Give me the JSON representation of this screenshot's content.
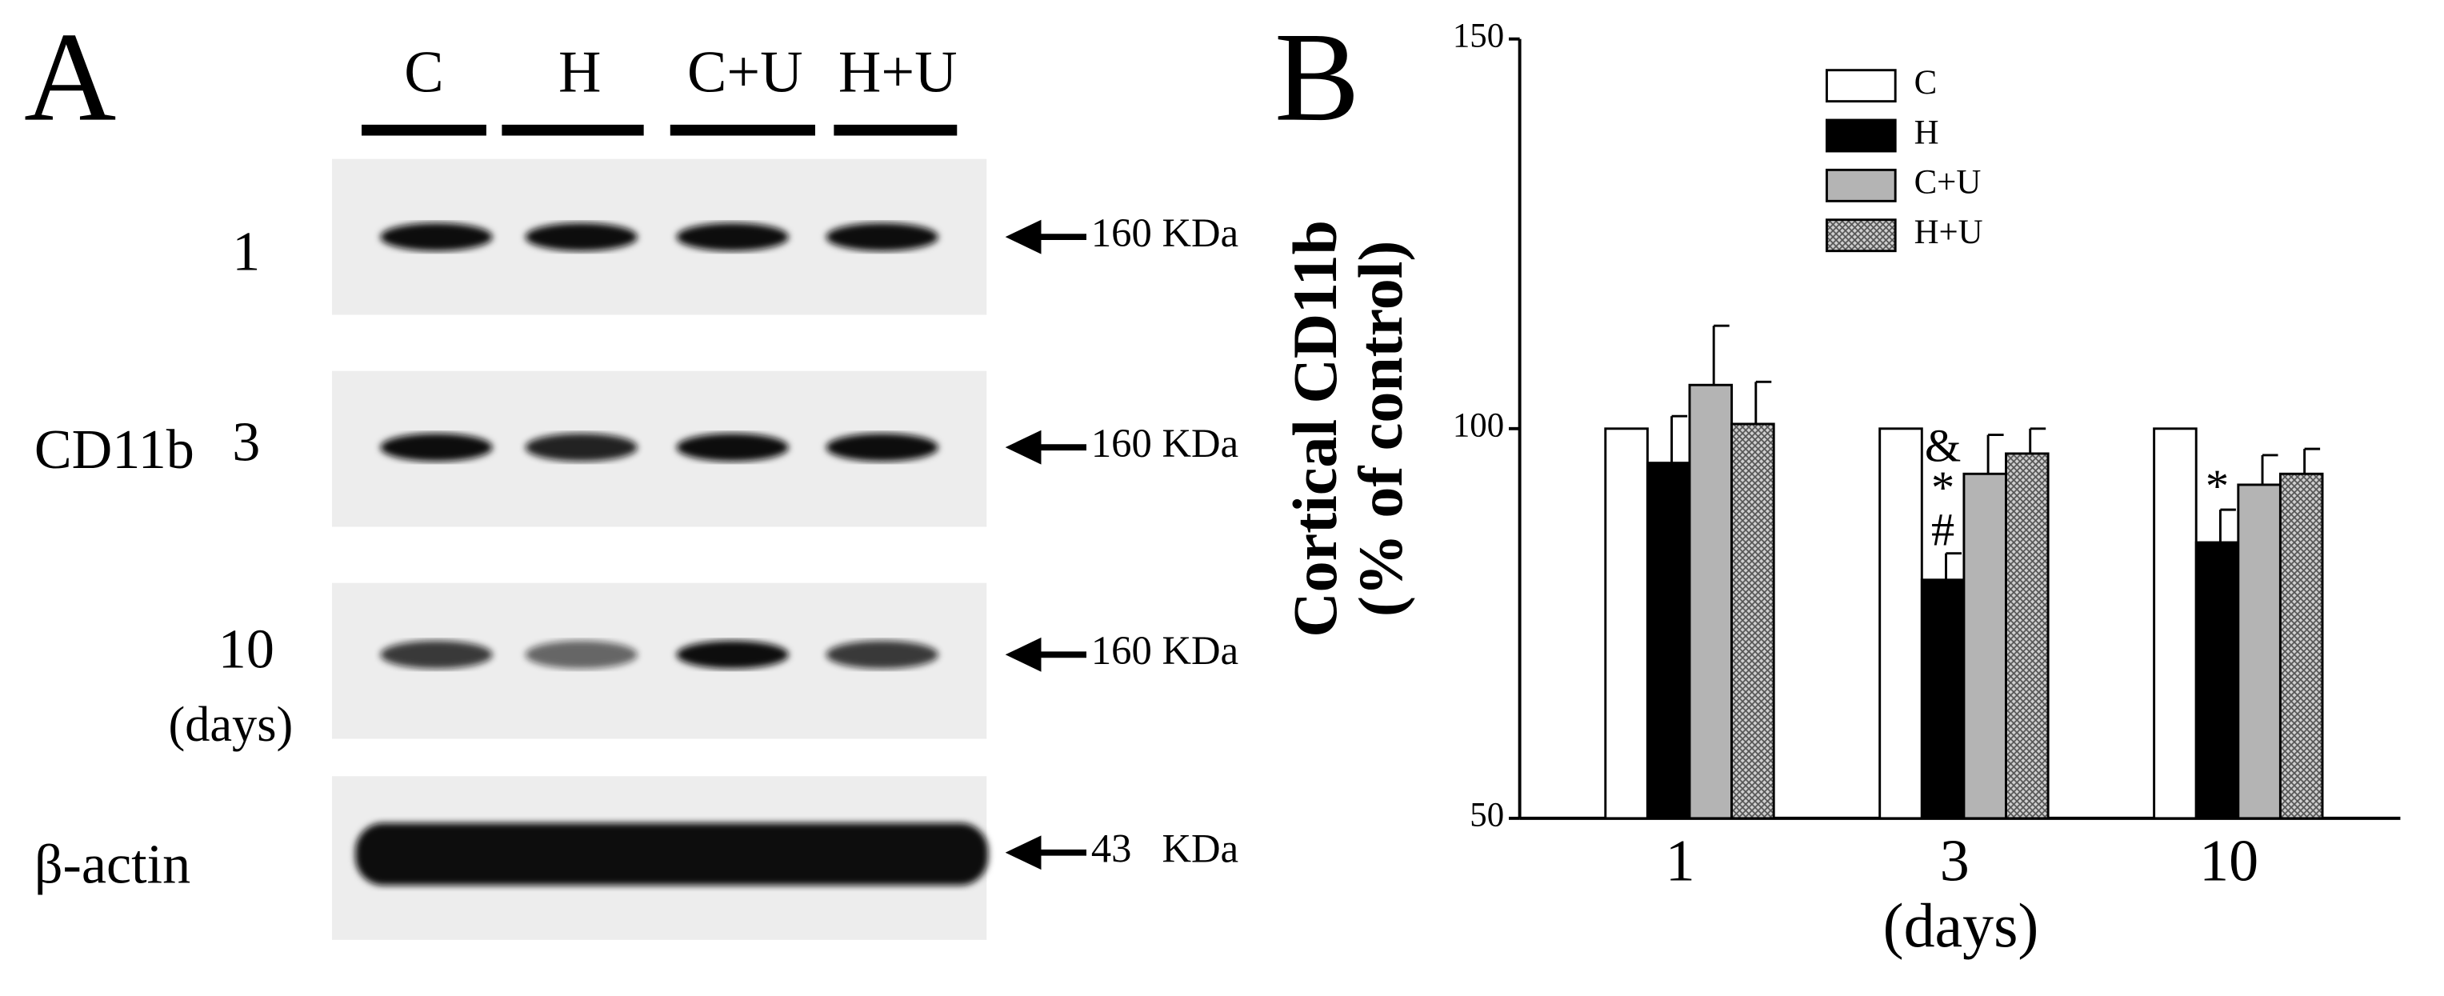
{
  "panel_a": {
    "label": "A",
    "lanes": [
      "C",
      "H",
      "C+U",
      "H+U"
    ],
    "rows": [
      {
        "label": "1",
        "marker": "160 KDa"
      },
      {
        "label": "3",
        "marker": "160 KDa"
      },
      {
        "label": "10",
        "marker": "160 KDa"
      }
    ],
    "group_label": "CD11b",
    "days_label": "(days)",
    "actin": {
      "label": "β-actin",
      "marker": "43   KDa"
    }
  },
  "chart_data": {
    "type": "bar",
    "label": "B",
    "y_label_lines": [
      "Cortical CD11b",
      "(% of control)"
    ],
    "x_label": "(days)",
    "categories": [
      "1",
      "3",
      "10"
    ],
    "series": [
      {
        "name": "C",
        "color": "#ffffff",
        "values": [
          100,
          100,
          100
        ],
        "errors": [
          null,
          null,
          null
        ]
      },
      {
        "name": "H",
        "color": "#000000",
        "values": [
          95.6,
          80.6,
          85.4
        ],
        "errors": [
          6,
          3.4,
          4.2
        ],
        "annotations": [
          null,
          [
            "&",
            "*",
            "#"
          ],
          [
            "*"
          ]
        ]
      },
      {
        "name": "C+U",
        "color": "#b4b4b4",
        "values": [
          105.6,
          94.2,
          92.8
        ],
        "errors": [
          7.6,
          5,
          3.8
        ]
      },
      {
        "name": "H+U",
        "color": "#8c8c8c",
        "hatch": true,
        "values": [
          100.6,
          96.8,
          94.2
        ],
        "errors": [
          5.4,
          3.2,
          3.2
        ]
      }
    ],
    "ylim": [
      50,
      150
    ],
    "yticks": [
      50,
      100,
      150
    ],
    "grid": false
  }
}
